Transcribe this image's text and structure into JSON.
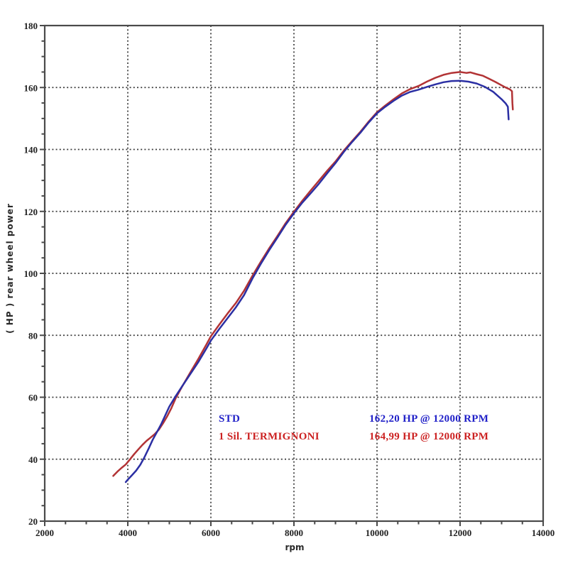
{
  "figure": {
    "background": "#ffffff",
    "axis_color": "#4a4a4a",
    "grid_color": "#3c3c3c",
    "tick_label_color": "#222222"
  },
  "chart_data": {
    "type": "line",
    "title": "",
    "xlabel": "rpm",
    "ylabel": "( HP )  rear wheel power",
    "xlim": [
      2000,
      14000
    ],
    "ylim": [
      20,
      180
    ],
    "x_major_ticks": [
      2000,
      4000,
      6000,
      8000,
      10000,
      12000,
      14000
    ],
    "x_minor_step": 500,
    "y_major_ticks": [
      20,
      40,
      60,
      80,
      100,
      120,
      140,
      160,
      180
    ],
    "y_minor_step": 5,
    "grid": "dashed-at-major-ticks",
    "legend_position": "inside-lower-right",
    "series": [
      {
        "name": "STD",
        "color": "#2b2fa3",
        "label_color": "#2121c8",
        "peak_annotation": "162,20 HP @ 12000 RPM",
        "points": [
          [
            3950,
            32.6
          ],
          [
            4000,
            33.4
          ],
          [
            4100,
            34.8
          ],
          [
            4200,
            36.3
          ],
          [
            4300,
            38.2
          ],
          [
            4400,
            40.6
          ],
          [
            4500,
            43.4
          ],
          [
            4600,
            46.3
          ],
          [
            4700,
            48.7
          ],
          [
            4800,
            51.2
          ],
          [
            4900,
            54.1
          ],
          [
            5000,
            57.0
          ],
          [
            5150,
            60.3
          ],
          [
            5300,
            63.4
          ],
          [
            5500,
            67.4
          ],
          [
            5700,
            71.4
          ],
          [
            5900,
            75.9
          ],
          [
            6000,
            78.3
          ],
          [
            6200,
            82.0
          ],
          [
            6400,
            85.5
          ],
          [
            6600,
            89.0
          ],
          [
            6800,
            93.0
          ],
          [
            7000,
            98.3
          ],
          [
            7200,
            103.0
          ],
          [
            7400,
            107.4
          ],
          [
            7600,
            111.5
          ],
          [
            7800,
            115.7
          ],
          [
            8000,
            119.4
          ],
          [
            8200,
            122.8
          ],
          [
            8400,
            125.8
          ],
          [
            8600,
            128.9
          ],
          [
            8800,
            132.3
          ],
          [
            9000,
            135.6
          ],
          [
            9200,
            139.2
          ],
          [
            9400,
            142.4
          ],
          [
            9600,
            145.4
          ],
          [
            9800,
            148.7
          ],
          [
            10000,
            151.7
          ],
          [
            10200,
            153.8
          ],
          [
            10400,
            155.7
          ],
          [
            10600,
            157.4
          ],
          [
            10800,
            158.6
          ],
          [
            11000,
            159.3
          ],
          [
            11200,
            160.2
          ],
          [
            11400,
            161.0
          ],
          [
            11600,
            161.7
          ],
          [
            11800,
            162.1
          ],
          [
            12000,
            162.2
          ],
          [
            12200,
            161.9
          ],
          [
            12400,
            161.3
          ],
          [
            12600,
            160.2
          ],
          [
            12800,
            158.6
          ],
          [
            13000,
            156.2
          ],
          [
            13100,
            154.8
          ],
          [
            13150,
            153.8
          ],
          [
            13160,
            151.5
          ],
          [
            13170,
            149.7
          ]
        ]
      },
      {
        "name": "1 Sil. TERMIGNONI",
        "color": "#b23335",
        "label_color": "#cc2222",
        "peak_annotation": "164,99 HP @ 12000 RPM",
        "points": [
          [
            3650,
            34.6
          ],
          [
            3750,
            36.0
          ],
          [
            3850,
            37.2
          ],
          [
            3950,
            38.3
          ],
          [
            4050,
            39.9
          ],
          [
            4150,
            41.6
          ],
          [
            4250,
            43.1
          ],
          [
            4350,
            44.6
          ],
          [
            4450,
            45.9
          ],
          [
            4550,
            47.0
          ],
          [
            4650,
            48.1
          ],
          [
            4750,
            49.6
          ],
          [
            4850,
            51.6
          ],
          [
            4950,
            53.9
          ],
          [
            5050,
            56.5
          ],
          [
            5150,
            59.6
          ],
          [
            5300,
            63.3
          ],
          [
            5500,
            67.9
          ],
          [
            5700,
            72.4
          ],
          [
            5900,
            77.2
          ],
          [
            6000,
            79.7
          ],
          [
            6200,
            83.4
          ],
          [
            6400,
            87.0
          ],
          [
            6600,
            90.4
          ],
          [
            6800,
            94.4
          ],
          [
            7000,
            99.2
          ],
          [
            7200,
            103.7
          ],
          [
            7400,
            108.0
          ],
          [
            7600,
            112.0
          ],
          [
            7800,
            116.2
          ],
          [
            8000,
            119.9
          ],
          [
            8200,
            123.4
          ],
          [
            8400,
            126.7
          ],
          [
            8600,
            129.9
          ],
          [
            8800,
            133.1
          ],
          [
            9000,
            136.1
          ],
          [
            9200,
            139.6
          ],
          [
            9400,
            142.7
          ],
          [
            9600,
            145.7
          ],
          [
            9800,
            149.0
          ],
          [
            10000,
            152.0
          ],
          [
            10200,
            154.2
          ],
          [
            10400,
            156.2
          ],
          [
            10600,
            158.1
          ],
          [
            10800,
            159.5
          ],
          [
            11000,
            160.5
          ],
          [
            11200,
            161.9
          ],
          [
            11400,
            163.1
          ],
          [
            11600,
            164.1
          ],
          [
            11800,
            164.7
          ],
          [
            12000,
            165.0
          ],
          [
            12150,
            164.7
          ],
          [
            12250,
            164.9
          ],
          [
            12400,
            164.3
          ],
          [
            12550,
            163.8
          ],
          [
            12700,
            162.8
          ],
          [
            12850,
            161.8
          ],
          [
            13000,
            160.7
          ],
          [
            13100,
            160.0
          ],
          [
            13200,
            159.4
          ],
          [
            13250,
            158.8
          ],
          [
            13260,
            155.0
          ],
          [
            13270,
            152.9
          ]
        ]
      }
    ]
  }
}
